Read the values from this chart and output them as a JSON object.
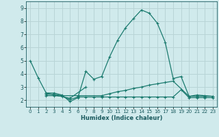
{
  "xlabel": "Humidex (Indice chaleur)",
  "bg_color": "#d0eaec",
  "grid_color": "#b8d4d6",
  "line_color": "#1a7a6e",
  "xlim": [
    -0.5,
    23.5
  ],
  "ylim": [
    1.5,
    9.5
  ],
  "yticks": [
    2,
    3,
    4,
    5,
    6,
    7,
    8,
    9
  ],
  "xticks": [
    0,
    1,
    2,
    3,
    4,
    5,
    6,
    7,
    8,
    9,
    10,
    11,
    12,
    13,
    14,
    15,
    16,
    17,
    18,
    19,
    20,
    21,
    22,
    23
  ],
  "series": [
    {
      "x": [
        0,
        1,
        2,
        3,
        4,
        5,
        6,
        7,
        8,
        9,
        10,
        11,
        12,
        13,
        14,
        15,
        16,
        17,
        18,
        19,
        20,
        21,
        22,
        23
      ],
      "y": [
        5.0,
        3.7,
        2.55,
        2.55,
        2.4,
        1.9,
        2.2,
        4.2,
        3.6,
        3.8,
        5.3,
        6.55,
        7.5,
        8.2,
        8.85,
        8.6,
        7.85,
        6.4,
        3.65,
        3.8,
        2.3,
        2.4,
        2.35,
        2.3
      ]
    },
    {
      "x": [
        2,
        5,
        7
      ],
      "y": [
        2.55,
        2.15,
        3.0
      ],
      "connected": false
    },
    {
      "x": [
        2,
        3,
        4,
        6,
        9,
        10,
        11,
        12,
        13,
        14,
        15,
        16,
        17,
        18,
        20,
        21,
        22,
        23
      ],
      "y": [
        2.45,
        2.45,
        2.35,
        2.35,
        2.35,
        2.5,
        2.65,
        2.75,
        2.9,
        3.0,
        3.15,
        3.25,
        3.35,
        3.45,
        2.3,
        2.3,
        2.3,
        2.3
      ],
      "connected": true
    },
    {
      "x": [
        2,
        3,
        4,
        5,
        6,
        7,
        8,
        9,
        10,
        11,
        12,
        13,
        14,
        15,
        16,
        17,
        18,
        19,
        20,
        21,
        22,
        23
      ],
      "y": [
        2.35,
        2.35,
        2.3,
        2.05,
        2.25,
        2.25,
        2.25,
        2.25,
        2.25,
        2.25,
        2.25,
        2.25,
        2.25,
        2.25,
        2.25,
        2.25,
        2.25,
        2.8,
        2.2,
        2.2,
        2.2,
        2.2
      ],
      "connected": true
    }
  ]
}
